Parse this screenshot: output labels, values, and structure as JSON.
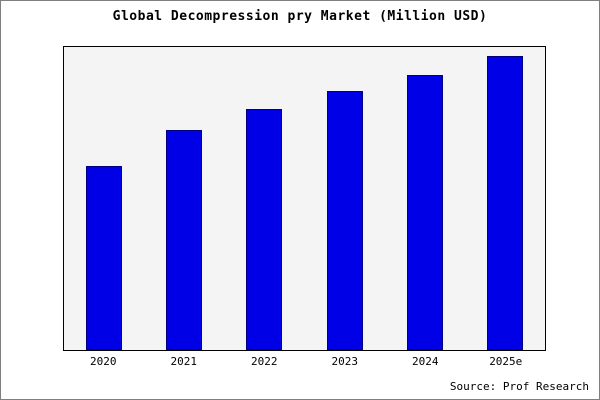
{
  "title": "Global Decompression pry Market (Million USD)",
  "source": "Source: Prof Research",
  "colors": {
    "bar_fill": "#0000e6",
    "bar_border": "#000080",
    "plot_background": "#f4f4f4",
    "frame_border": "#7f7f7f"
  },
  "chart_data": {
    "type": "bar",
    "title": "Global Decompression pry Market (Million USD)",
    "categories": [
      "2020",
      "2021",
      "2022",
      "2023",
      "2024",
      "2025e"
    ],
    "values": [
      100,
      120,
      131,
      141,
      150,
      160
    ],
    "xlabel": "",
    "ylabel": "",
    "ylim": [
      0,
      165
    ],
    "grid": false,
    "legend": false,
    "y_axis_ticks_visible": false,
    "source": "Source: Prof Research"
  }
}
